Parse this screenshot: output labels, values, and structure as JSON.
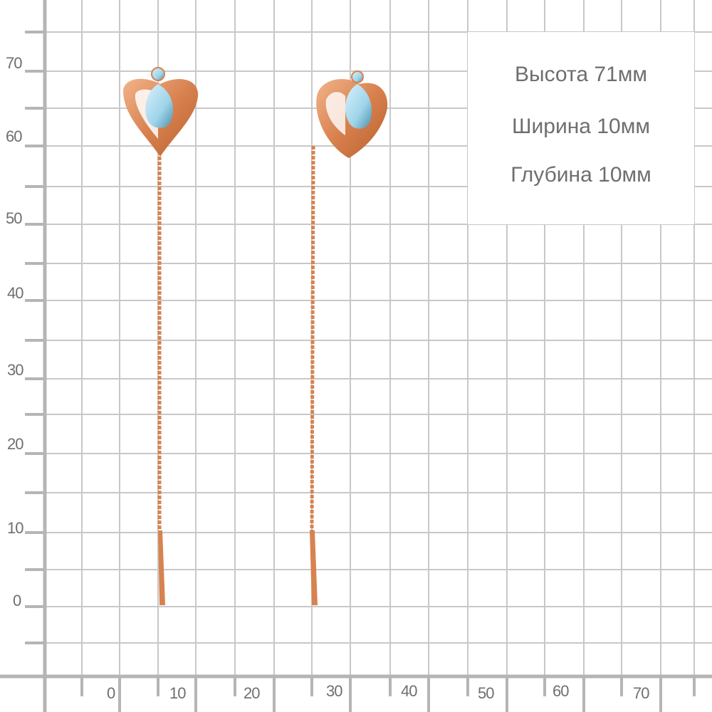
{
  "ruler": {
    "y_labels": [
      "70",
      "60",
      "50",
      "40",
      "30",
      "20",
      "10",
      "0"
    ],
    "x_labels": [
      "0",
      "10",
      "20",
      "30",
      "40",
      "50",
      "60",
      "70"
    ],
    "unit": "mm"
  },
  "specs": {
    "height": "Высота  71мм",
    "width": "Ширина  10мм",
    "depth": "Глубина  10мм"
  },
  "colors": {
    "grid": "#c8c8c8",
    "axis": "#b5b5b5",
    "gold": "#d98a5c",
    "stone": "#a9dbee"
  },
  "product": {
    "icon": "heart-topaz-chain-earrings"
  }
}
